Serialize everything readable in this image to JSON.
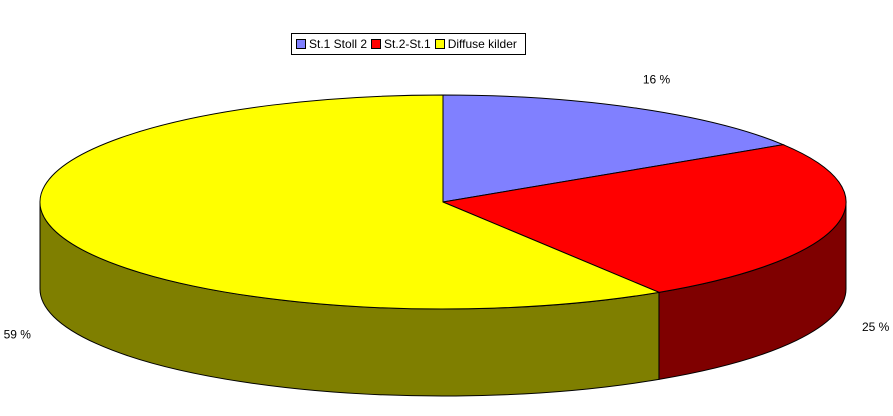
{
  "chart_data": {
    "type": "pie3d",
    "categories": [
      "St.1 Stoll 2",
      "St.2-St.1",
      "Diffuse kilder"
    ],
    "values": [
      16,
      25,
      59
    ],
    "value_labels": [
      "16 %",
      "25 %",
      "59 %"
    ],
    "colors": [
      "#8080ff",
      "#ff0000",
      "#ffff00"
    ],
    "legend": "top"
  }
}
